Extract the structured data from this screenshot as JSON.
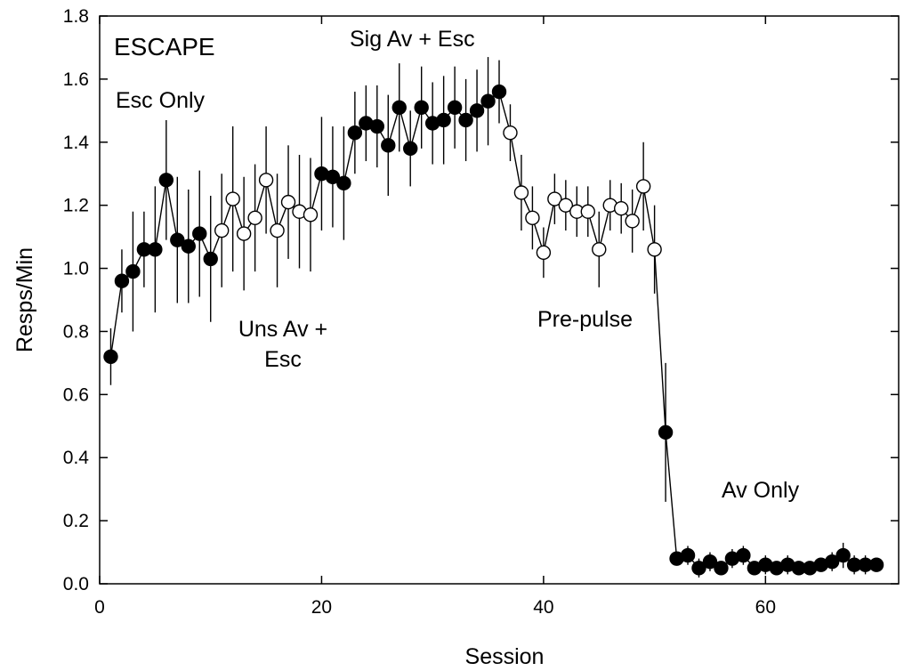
{
  "chart_data": {
    "type": "scatter",
    "title": "",
    "xlabel": "Session",
    "ylabel": "Resps/Min",
    "xlim": [
      0,
      72
    ],
    "ylim": [
      0,
      1.8
    ],
    "xticks": [
      0,
      20,
      40,
      60
    ],
    "yticks": [
      "0.0",
      "0.2",
      "0.4",
      "0.6",
      "0.8",
      "1.0",
      "1.2",
      "1.4",
      "1.6",
      "1.8"
    ],
    "grid": false,
    "annotations": [
      {
        "text": "ESCAPE"
      },
      {
        "text": "Esc Only"
      },
      {
        "text": "Sig Av + Esc"
      },
      {
        "text": "Uns Av +"
      },
      {
        "text": "Esc"
      },
      {
        "text": "Pre-pulse"
      },
      {
        "text": "Av Only"
      }
    ],
    "series": [
      {
        "marker": "filled",
        "points": [
          {
            "x": 1,
            "y": 0.72,
            "err": 0.09
          },
          {
            "x": 2,
            "y": 0.96,
            "err": 0.1
          },
          {
            "x": 3,
            "y": 0.99,
            "err": 0.19
          },
          {
            "x": 4,
            "y": 1.06,
            "err": 0.12
          },
          {
            "x": 5,
            "y": 1.06,
            "err": 0.2
          },
          {
            "x": 6,
            "y": 1.28,
            "err": 0.19
          },
          {
            "x": 7,
            "y": 1.09,
            "err": 0.2
          },
          {
            "x": 8,
            "y": 1.07,
            "err": 0.18
          },
          {
            "x": 9,
            "y": 1.11,
            "err": 0.2
          },
          {
            "x": 10,
            "y": 1.03,
            "err": 0.2
          }
        ]
      },
      {
        "marker": "open",
        "points": [
          {
            "x": 11,
            "y": 1.12,
            "err": 0.18
          },
          {
            "x": 12,
            "y": 1.22,
            "err": 0.23
          },
          {
            "x": 13,
            "y": 1.11,
            "err": 0.18
          },
          {
            "x": 14,
            "y": 1.16,
            "err": 0.17
          },
          {
            "x": 15,
            "y": 1.28,
            "err": 0.17
          },
          {
            "x": 16,
            "y": 1.12,
            "err": 0.18
          },
          {
            "x": 17,
            "y": 1.21,
            "err": 0.18
          },
          {
            "x": 18,
            "y": 1.18,
            "err": 0.18
          },
          {
            "x": 19,
            "y": 1.17,
            "err": 0.18
          }
        ]
      },
      {
        "marker": "filled",
        "points": [
          {
            "x": 20,
            "y": 1.3,
            "err": 0.18
          },
          {
            "x": 21,
            "y": 1.29,
            "err": 0.16
          },
          {
            "x": 22,
            "y": 1.27,
            "err": 0.18
          },
          {
            "x": 23,
            "y": 1.43,
            "err": 0.13
          },
          {
            "x": 24,
            "y": 1.46,
            "err": 0.12
          },
          {
            "x": 25,
            "y": 1.45,
            "err": 0.13
          },
          {
            "x": 26,
            "y": 1.39,
            "err": 0.16
          },
          {
            "x": 27,
            "y": 1.51,
            "err": 0.14
          },
          {
            "x": 28,
            "y": 1.38,
            "err": 0.12
          },
          {
            "x": 29,
            "y": 1.51,
            "err": 0.13
          },
          {
            "x": 30,
            "y": 1.46,
            "err": 0.13
          },
          {
            "x": 31,
            "y": 1.47,
            "err": 0.14
          },
          {
            "x": 32,
            "y": 1.51,
            "err": 0.13
          },
          {
            "x": 33,
            "y": 1.47,
            "err": 0.13
          },
          {
            "x": 34,
            "y": 1.5,
            "err": 0.13
          },
          {
            "x": 35,
            "y": 1.53,
            "err": 0.14
          },
          {
            "x": 36,
            "y": 1.56,
            "err": 0.1
          }
        ]
      },
      {
        "marker": "open",
        "points": [
          {
            "x": 37,
            "y": 1.43,
            "err": 0.09
          },
          {
            "x": 38,
            "y": 1.24,
            "err": 0.12
          },
          {
            "x": 39,
            "y": 1.16,
            "err": 0.1
          },
          {
            "x": 40,
            "y": 1.05,
            "err": 0.08
          },
          {
            "x": 41,
            "y": 1.22,
            "err": 0.08
          },
          {
            "x": 42,
            "y": 1.2,
            "err": 0.08
          },
          {
            "x": 43,
            "y": 1.18,
            "err": 0.08
          },
          {
            "x": 44,
            "y": 1.18,
            "err": 0.08
          },
          {
            "x": 45,
            "y": 1.06,
            "err": 0.12
          },
          {
            "x": 46,
            "y": 1.2,
            "err": 0.08
          },
          {
            "x": 47,
            "y": 1.19,
            "err": 0.08
          },
          {
            "x": 48,
            "y": 1.15,
            "err": 0.1
          },
          {
            "x": 49,
            "y": 1.26,
            "err": 0.14
          },
          {
            "x": 50,
            "y": 1.06,
            "err": 0.14
          }
        ]
      },
      {
        "marker": "filled",
        "points": [
          {
            "x": 51,
            "y": 0.48,
            "err": 0.22
          },
          {
            "x": 52,
            "y": 0.08,
            "err": 0.02
          },
          {
            "x": 53,
            "y": 0.09,
            "err": 0.03
          },
          {
            "x": 54,
            "y": 0.05,
            "err": 0.03
          },
          {
            "x": 55,
            "y": 0.07,
            "err": 0.03
          },
          {
            "x": 56,
            "y": 0.05,
            "err": 0.02
          },
          {
            "x": 57,
            "y": 0.08,
            "err": 0.03
          },
          {
            "x": 58,
            "y": 0.09,
            "err": 0.03
          },
          {
            "x": 59,
            "y": 0.05,
            "err": 0.02
          },
          {
            "x": 60,
            "y": 0.06,
            "err": 0.03
          },
          {
            "x": 61,
            "y": 0.05,
            "err": 0.02
          },
          {
            "x": 62,
            "y": 0.06,
            "err": 0.03
          },
          {
            "x": 63,
            "y": 0.05,
            "err": 0.02
          },
          {
            "x": 64,
            "y": 0.05,
            "err": 0.02
          },
          {
            "x": 65,
            "y": 0.06,
            "err": 0.02
          },
          {
            "x": 66,
            "y": 0.07,
            "err": 0.03
          },
          {
            "x": 67,
            "y": 0.09,
            "err": 0.04
          },
          {
            "x": 68,
            "y": 0.06,
            "err": 0.03
          },
          {
            "x": 69,
            "y": 0.06,
            "err": 0.03
          },
          {
            "x": 70,
            "y": 0.06,
            "err": 0.02
          }
        ]
      }
    ]
  }
}
